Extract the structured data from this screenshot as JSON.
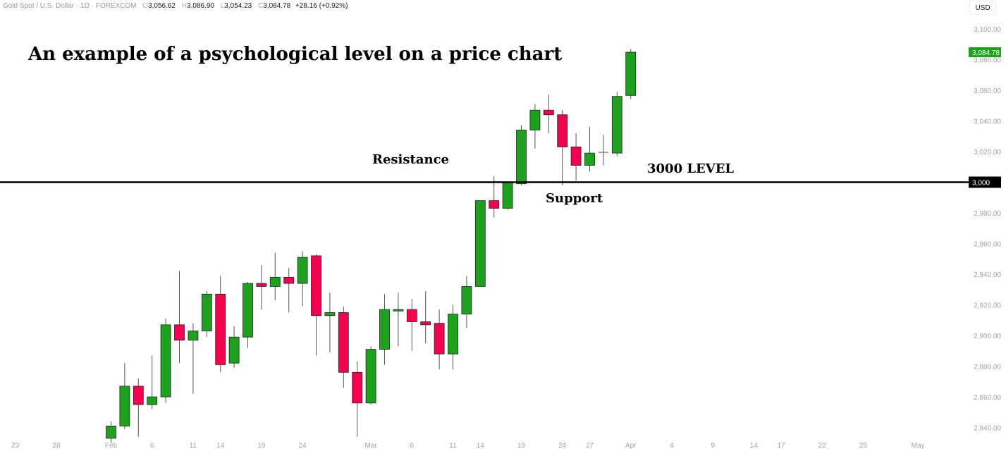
{
  "header": {
    "symbol": "Gold Spot / U.S. Dollar · 1D · FOREXCOM",
    "open_label": "O",
    "open": "3,056.62",
    "high_label": "H",
    "high": "3,086.90",
    "low_label": "L",
    "low": "3,054.23",
    "close_label": "C",
    "close": "3,084.78",
    "change": "+28.16 (+0.92%)"
  },
  "currency_button": "USD",
  "annotations": {
    "title": "An example of a psychological level on a price chart",
    "resistance": "Resistance",
    "support": "Support",
    "level": "3000 LEVEL"
  },
  "colors": {
    "up": "#1ca21c",
    "down": "#f5004f",
    "axis_text": "#a0a3a8",
    "line": "#000000"
  },
  "chart_data": {
    "type": "candlestick",
    "title": "An example of a psychological level on a price chart",
    "ylim": [
      2832,
      3112
    ],
    "y_ticks": [
      3100,
      3080,
      3060,
      3040,
      3020,
      3000,
      2980,
      2960,
      2940,
      2920,
      2900,
      2880,
      2860,
      2840
    ],
    "y_tick_labels": [
      "3,100.00",
      "3,080.00",
      "3,060.00",
      "3,040.00",
      "3,020.00",
      "3,000",
      "2,980.00",
      "2,960.00",
      "2,940.00",
      "2,920.00",
      "2,900.00",
      "2,880.00",
      "2,860.00",
      "2,840.00"
    ],
    "x_tick_labels": [
      "23",
      "28",
      "Feb",
      "6",
      "11",
      "14",
      "19",
      "24",
      "Mar",
      "6",
      "11",
      "14",
      "19",
      "24",
      "27",
      "Apr",
      "4",
      "9",
      "14",
      "17",
      "22",
      "25",
      "May"
    ],
    "x_tick_index": [
      -7,
      -4,
      0,
      3,
      6,
      8,
      11,
      14,
      19,
      22,
      25,
      27,
      30,
      33,
      35,
      38,
      41,
      44,
      47,
      49,
      52,
      55,
      59
    ],
    "horizontal_line": {
      "value": 3000,
      "label": "3,000"
    },
    "last_price": {
      "value": 3084.78,
      "label": "3,084.78"
    },
    "candles": [
      [
        2833,
        2844,
        2830,
        2841
      ],
      [
        2841,
        2882,
        2839,
        2867
      ],
      [
        2867,
        2872,
        2834,
        2855
      ],
      [
        2855,
        2887,
        2852,
        2860
      ],
      [
        2860,
        2911,
        2856,
        2907
      ],
      [
        2907,
        2942,
        2882,
        2897
      ],
      [
        2897,
        2908,
        2862,
        2903
      ],
      [
        2903,
        2929,
        2899,
        2927
      ],
      [
        2927,
        2939,
        2876,
        2881
      ],
      [
        2882,
        2906,
        2879,
        2899
      ],
      [
        2899,
        2935,
        2892,
        2934
      ],
      [
        2934,
        2946,
        2917,
        2932
      ],
      [
        2932,
        2954,
        2923,
        2938
      ],
      [
        2938,
        2944,
        2915,
        2934
      ],
      [
        2934,
        2955,
        2919,
        2951
      ],
      [
        2952,
        2953,
        2887,
        2913
      ],
      [
        2913,
        2928,
        2889,
        2915
      ],
      [
        2915,
        2919,
        2866,
        2876
      ],
      [
        2876,
        2883,
        2834,
        2856
      ],
      [
        2856,
        2893,
        2855,
        2891
      ],
      [
        2891,
        2927,
        2881,
        2917
      ],
      [
        2916,
        2928,
        2893,
        2917
      ],
      [
        2917,
        2924,
        2890,
        2909
      ],
      [
        2909,
        2929,
        2895,
        2907
      ],
      [
        2908,
        2917,
        2878,
        2888
      ],
      [
        2888,
        2920,
        2878,
        2914
      ],
      [
        2914,
        2939,
        2905,
        2932
      ],
      [
        2932,
        2988,
        2932,
        2988
      ],
      [
        2988,
        3004,
        2977,
        2983
      ],
      [
        2983,
        3000,
        2982,
        3000
      ],
      [
        2999,
        3037,
        2998,
        3034
      ],
      [
        3034,
        3051,
        3022,
        3047
      ],
      [
        3047,
        3057,
        3032,
        3044
      ],
      [
        3044,
        3047,
        2998,
        3023
      ],
      [
        3023,
        3032,
        3001,
        3011
      ],
      [
        3011,
        3036,
        3007,
        3019
      ],
      [
        3019,
        3031,
        3011,
        3019.5
      ],
      [
        3019,
        3059,
        3017,
        3056
      ],
      [
        3056.62,
        3086.9,
        3054.23,
        3084.78
      ]
    ],
    "candle_format": "[open, high, low, close]"
  }
}
